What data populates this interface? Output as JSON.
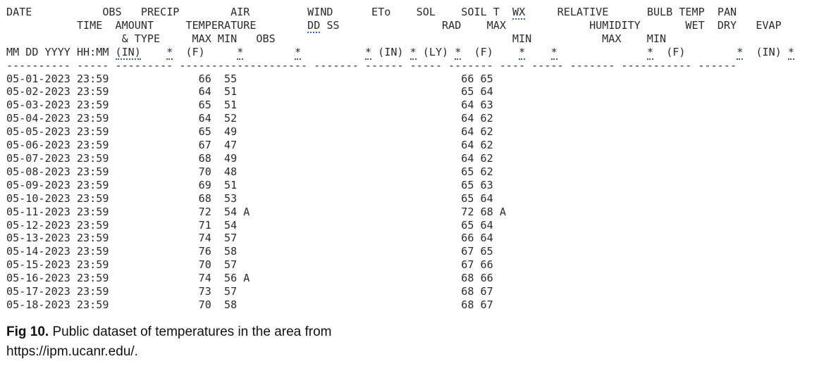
{
  "header": {
    "row1": {
      "date": "DATE",
      "obs": "OBS",
      "precip": "PRECIP",
      "air": "AIR",
      "wind": "WIND",
      "eto": "ETo",
      "sol": "SOL",
      "soil": "SOIL T",
      "wx": "WX",
      "rh": "RELATIVE",
      "bulb": "BULB TEMP",
      "pan": "PAN"
    },
    "row2": {
      "obs": "TIME",
      "precip": "AMOUNT",
      "air": "TEMPERATURE",
      "wind_dd": "DD",
      "wind_ss": "SS",
      "sol": "RAD",
      "soil": "MAX",
      "rh": "HUMIDITY",
      "bulb": "WET  DRY",
      "pan": "EVAP"
    },
    "row3": {
      "precip": "& TYPE",
      "air": "MAX MIN   OBS",
      "soil": "MIN",
      "rh": "MAX    MIN"
    },
    "row4": {
      "date": "MM DD YYYY",
      "time": "HH:MM",
      "in": "(IN)",
      "f": "(F)",
      "eto": "(IN)",
      "sol": "(LY)",
      "soil": "(F)",
      "bulb": "(F)",
      "pan": "(IN)",
      "flag": "*"
    },
    "rule": "---------- ----- --------- -------------------- ------- ------ ----- ------- ---- ----- ------- ----------- ------"
  },
  "rows": [
    {
      "date": "05-01-2023",
      "time": "23:59",
      "air_max": "66",
      "air_min": "55",
      "air_flag": "",
      "soil_max": "66",
      "soil_min": "65",
      "soil_flag": ""
    },
    {
      "date": "05-02-2023",
      "time": "23:59",
      "air_max": "64",
      "air_min": "51",
      "air_flag": "",
      "soil_max": "65",
      "soil_min": "64",
      "soil_flag": ""
    },
    {
      "date": "05-03-2023",
      "time": "23:59",
      "air_max": "65",
      "air_min": "51",
      "air_flag": "",
      "soil_max": "64",
      "soil_min": "63",
      "soil_flag": ""
    },
    {
      "date": "05-04-2023",
      "time": "23:59",
      "air_max": "64",
      "air_min": "52",
      "air_flag": "",
      "soil_max": "64",
      "soil_min": "62",
      "soil_flag": ""
    },
    {
      "date": "05-05-2023",
      "time": "23:59",
      "air_max": "65",
      "air_min": "49",
      "air_flag": "",
      "soil_max": "64",
      "soil_min": "62",
      "soil_flag": ""
    },
    {
      "date": "05-06-2023",
      "time": "23:59",
      "air_max": "67",
      "air_min": "47",
      "air_flag": "",
      "soil_max": "64",
      "soil_min": "62",
      "soil_flag": ""
    },
    {
      "date": "05-07-2023",
      "time": "23:59",
      "air_max": "68",
      "air_min": "49",
      "air_flag": "",
      "soil_max": "64",
      "soil_min": "62",
      "soil_flag": ""
    },
    {
      "date": "05-08-2023",
      "time": "23:59",
      "air_max": "70",
      "air_min": "48",
      "air_flag": "",
      "soil_max": "65",
      "soil_min": "62",
      "soil_flag": ""
    },
    {
      "date": "05-09-2023",
      "time": "23:59",
      "air_max": "69",
      "air_min": "51",
      "air_flag": "",
      "soil_max": "65",
      "soil_min": "63",
      "soil_flag": ""
    },
    {
      "date": "05-10-2023",
      "time": "23:59",
      "air_max": "68",
      "air_min": "53",
      "air_flag": "",
      "soil_max": "65",
      "soil_min": "64",
      "soil_flag": ""
    },
    {
      "date": "05-11-2023",
      "time": "23:59",
      "air_max": "72",
      "air_min": "54",
      "air_flag": "A",
      "soil_max": "72",
      "soil_min": "68",
      "soil_flag": "A"
    },
    {
      "date": "05-12-2023",
      "time": "23:59",
      "air_max": "71",
      "air_min": "54",
      "air_flag": "",
      "soil_max": "65",
      "soil_min": "64",
      "soil_flag": ""
    },
    {
      "date": "05-13-2023",
      "time": "23:59",
      "air_max": "74",
      "air_min": "57",
      "air_flag": "",
      "soil_max": "66",
      "soil_min": "64",
      "soil_flag": ""
    },
    {
      "date": "05-14-2023",
      "time": "23:59",
      "air_max": "76",
      "air_min": "58",
      "air_flag": "",
      "soil_max": "67",
      "soil_min": "65",
      "soil_flag": ""
    },
    {
      "date": "05-15-2023",
      "time": "23:59",
      "air_max": "70",
      "air_min": "57",
      "air_flag": "",
      "soil_max": "67",
      "soil_min": "66",
      "soil_flag": ""
    },
    {
      "date": "05-16-2023",
      "time": "23:59",
      "air_max": "74",
      "air_min": "56",
      "air_flag": "A",
      "soil_max": "68",
      "soil_min": "66",
      "soil_flag": ""
    },
    {
      "date": "05-17-2023",
      "time": "23:59",
      "air_max": "73",
      "air_min": "57",
      "air_flag": "",
      "soil_max": "68",
      "soil_min": "67",
      "soil_flag": ""
    },
    {
      "date": "05-18-2023",
      "time": "23:59",
      "air_max": "70",
      "air_min": "58",
      "air_flag": "",
      "soil_max": "68",
      "soil_min": "67",
      "soil_flag": ""
    }
  ],
  "caption": {
    "label": "Fig 10.",
    "text": "Public dataset of temperatures in the area from https://ipm.ucanr.edu/."
  },
  "colors": {
    "text": "#2b2b2b",
    "link_dots": "#3a5fb0"
  }
}
